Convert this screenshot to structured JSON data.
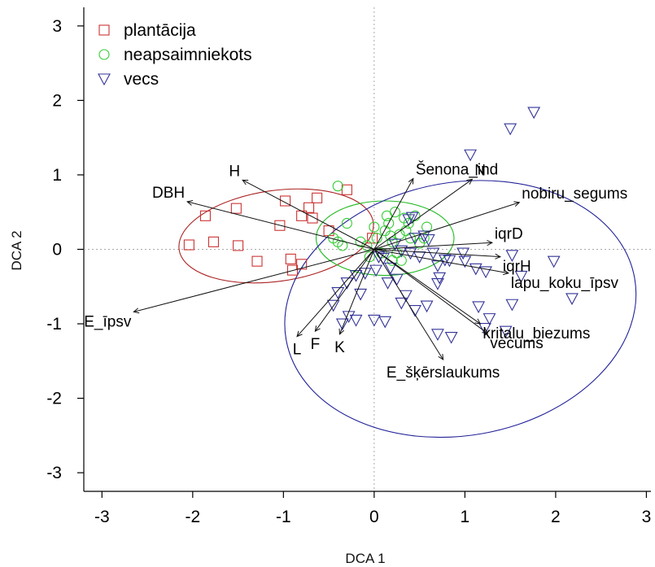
{
  "chart_data": {
    "type": "scatter",
    "title": "",
    "xlabel": "DCA 1",
    "ylabel": "DCA 2",
    "xlim": [
      -3.2,
      3.05
    ],
    "ylim": [
      -3.25,
      3.25
    ],
    "xticks": [
      -3,
      -2,
      -1,
      0,
      1,
      2,
      3
    ],
    "yticks": [
      -3,
      -2,
      -1,
      0,
      1,
      2,
      3
    ],
    "grid": false,
    "reference_lines": {
      "x": 0,
      "y": 0,
      "color": "#aaaaaa",
      "style": "dotted"
    },
    "legend_position": "top-left",
    "series": [
      {
        "name": "plantācija",
        "marker": "square",
        "color": "#cc3333",
        "points": [
          [
            -1.86,
            0.45
          ],
          [
            -2.04,
            0.06
          ],
          [
            -1.77,
            0.1
          ],
          [
            -1.52,
            0.55
          ],
          [
            -1.5,
            0.05
          ],
          [
            -1.29,
            -0.16
          ],
          [
            -1.04,
            0.32
          ],
          [
            -0.98,
            0.65
          ],
          [
            -0.92,
            -0.13
          ],
          [
            -0.9,
            -0.28
          ],
          [
            -0.8,
            -0.2
          ],
          [
            -0.8,
            0.45
          ],
          [
            -0.72,
            0.56
          ],
          [
            -0.68,
            0.42
          ],
          [
            -0.63,
            0.69
          ],
          [
            -0.5,
            0.25
          ],
          [
            -0.3,
            0.8
          ],
          [
            -0.02,
            0.15
          ]
        ]
      },
      {
        "name": "neapsaimniekots",
        "marker": "circle",
        "color": "#33cc33",
        "points": [
          [
            -0.4,
            0.85
          ],
          [
            -0.3,
            0.35
          ],
          [
            -0.45,
            0.15
          ],
          [
            -0.4,
            0.1
          ],
          [
            -0.35,
            0.05
          ],
          [
            -0.15,
            0.1
          ],
          [
            -0.08,
            0.05
          ],
          [
            0.0,
            0.3
          ],
          [
            0.03,
            0.15
          ],
          [
            0.08,
            -0.05
          ],
          [
            0.12,
            0.25
          ],
          [
            0.14,
            0.45
          ],
          [
            0.16,
            0.35
          ],
          [
            0.18,
            0.18
          ],
          [
            0.2,
            0.1
          ],
          [
            0.23,
            0.5
          ],
          [
            0.25,
            -0.05
          ],
          [
            0.28,
            0.2
          ],
          [
            0.33,
            0.42
          ],
          [
            0.35,
            0.25
          ],
          [
            0.38,
            0.35
          ],
          [
            0.4,
            0.15
          ],
          [
            0.5,
            0.08
          ],
          [
            0.55,
            0.15
          ],
          [
            0.2,
            -0.15
          ],
          [
            0.3,
            -0.15
          ],
          [
            -0.05,
            -0.1
          ],
          [
            0.45,
            0.45
          ],
          [
            0.58,
            0.3
          ]
        ]
      },
      {
        "name": "vecs",
        "marker": "triangle-down",
        "color": "#333399",
        "points": [
          [
            1.76,
            1.84
          ],
          [
            1.5,
            1.62
          ],
          [
            1.06,
            1.27
          ],
          [
            0.42,
            0.43
          ],
          [
            0.38,
            0.4
          ],
          [
            0.23,
            0.07
          ],
          [
            0.3,
            -0.02
          ],
          [
            0.4,
            -0.05
          ],
          [
            0.5,
            -0.1
          ],
          [
            0.6,
            0.13
          ],
          [
            0.45,
            0.15
          ],
          [
            0.55,
            0.18
          ],
          [
            0.65,
            -0.05
          ],
          [
            0.7,
            -0.22
          ],
          [
            0.72,
            -0.38
          ],
          [
            0.7,
            -0.46
          ],
          [
            0.78,
            -0.14
          ],
          [
            0.83,
            -0.15
          ],
          [
            0.98,
            -0.05
          ],
          [
            1.12,
            -0.26
          ],
          [
            1.23,
            -0.3
          ],
          [
            1.0,
            -0.16
          ],
          [
            1.52,
            -0.08
          ],
          [
            1.62,
            -0.36
          ],
          [
            1.98,
            -0.16
          ],
          [
            2.18,
            -0.66
          ],
          [
            1.52,
            -0.74
          ],
          [
            1.15,
            -0.77
          ],
          [
            1.27,
            -0.93
          ],
          [
            1.22,
            -1.06
          ],
          [
            1.45,
            -1.1
          ],
          [
            0.58,
            -0.76
          ],
          [
            0.35,
            -0.62
          ],
          [
            0.45,
            -0.82
          ],
          [
            0.3,
            -0.72
          ],
          [
            0.15,
            -0.45
          ],
          [
            0.25,
            -0.4
          ],
          [
            0.05,
            -0.1
          ],
          [
            0.1,
            -0.12
          ],
          [
            0.18,
            -0.25
          ],
          [
            0.02,
            -0.28
          ],
          [
            -0.1,
            -0.32
          ],
          [
            -0.2,
            -0.35
          ],
          [
            -0.3,
            -0.45
          ],
          [
            -0.4,
            -0.58
          ],
          [
            -0.45,
            -0.75
          ],
          [
            -0.28,
            -0.9
          ],
          [
            -0.2,
            -0.95
          ],
          [
            0.0,
            -0.95
          ],
          [
            0.12,
            -0.97
          ],
          [
            -0.35,
            -1.0
          ],
          [
            0.7,
            -1.14
          ],
          [
            0.85,
            -1.18
          ],
          [
            -0.15,
            -0.6
          ]
        ]
      }
    ],
    "ellipses": [
      {
        "group": "plantācija",
        "color": "#aa2222",
        "center": [
          -1.08,
          0.18
        ],
        "radii": [
          1.08,
          0.61
        ],
        "rotation_deg": -8
      },
      {
        "group": "neapsaimniekots",
        "color": "#22bb22",
        "center": [
          0.12,
          0.15
        ],
        "radii": [
          0.76,
          0.5
        ],
        "rotation_deg": 0
      },
      {
        "group": "vecs",
        "color": "#222299",
        "center": [
          0.95,
          -0.8
        ],
        "radii": [
          1.95,
          1.7
        ],
        "rotation_deg": -10
      }
    ],
    "vectors": [
      {
        "label": "Šenona_ind",
        "x": 0.43,
        "y": 0.95
      },
      {
        "label": "N",
        "x": 1.08,
        "y": 0.94
      },
      {
        "label": "nobiru_segums",
        "x": 1.6,
        "y": 0.63
      },
      {
        "label": "iqrD",
        "x": 1.3,
        "y": 0.09
      },
      {
        "label": "iqrH",
        "x": 1.39,
        "y": -0.1
      },
      {
        "label": "lapu_koku_īpsv",
        "x": 1.48,
        "y": -0.32
      },
      {
        "label": "kritalu_biezums",
        "x": 1.17,
        "y": -1.0
      },
      {
        "label": "vecums",
        "x": 1.25,
        "y": -1.13
      },
      {
        "label": "E_šķērslaukums",
        "x": 0.76,
        "y": -1.48
      },
      {
        "label": "H",
        "x": -1.45,
        "y": 0.93
      },
      {
        "label": "DBH",
        "x": -2.06,
        "y": 0.64
      },
      {
        "label": "E_īpsv",
        "x": -2.65,
        "y": -0.84
      },
      {
        "label": "L",
        "x": -0.85,
        "y": -1.17
      },
      {
        "label": "F",
        "x": -0.65,
        "y": -1.1
      },
      {
        "label": "K",
        "x": -0.38,
        "y": -1.14
      }
    ]
  }
}
